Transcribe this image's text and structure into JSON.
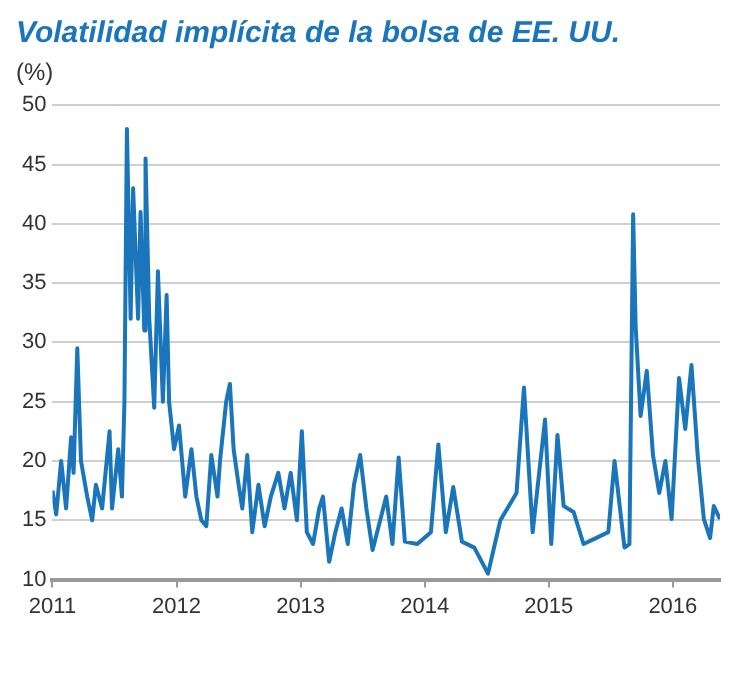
{
  "chart_data": {
    "type": "line",
    "title": "Volatilidad implícita de la bolsa de EE. UU.",
    "ylabel": "(%)",
    "x": [
      2011.0,
      2011.03,
      2011.07,
      2011.11,
      2011.15,
      2011.17,
      2011.2,
      2011.23,
      2011.28,
      2011.32,
      2011.35,
      2011.4,
      2011.46,
      2011.48,
      2011.53,
      2011.56,
      2011.58,
      2011.6,
      2011.63,
      2011.65,
      2011.69,
      2011.71,
      2011.74,
      2011.75,
      2011.78,
      2011.82,
      2011.85,
      2011.89,
      2011.92,
      2011.94,
      2011.98,
      2012.02,
      2012.07,
      2012.12,
      2012.16,
      2012.2,
      2012.24,
      2012.28,
      2012.33,
      2012.35,
      2012.4,
      2012.43,
      2012.46,
      2012.5,
      2012.53,
      2012.57,
      2012.61,
      2012.66,
      2012.71,
      2012.76,
      2012.82,
      2012.87,
      2012.92,
      2012.97,
      2013.01,
      2013.05,
      2013.1,
      2013.15,
      2013.18,
      2013.23,
      2013.28,
      2013.33,
      2013.38,
      2013.43,
      2013.48,
      2013.53,
      2013.58,
      2013.69,
      2013.74,
      2013.79,
      2013.84,
      2013.94,
      2014.05,
      2014.11,
      2014.17,
      2014.23,
      2014.3,
      2014.4,
      2014.51,
      2014.61,
      2014.74,
      2014.8,
      2014.87,
      2014.97,
      2015.02,
      2015.07,
      2015.12,
      2015.2,
      2015.28,
      2015.38,
      2015.48,
      2015.53,
      2015.61,
      2015.65,
      2015.68,
      2015.7,
      2015.74,
      2015.79,
      2015.84,
      2015.89,
      2015.94,
      2015.99,
      2016.05,
      2016.1,
      2016.15,
      2016.2,
      2016.25,
      2016.3,
      2016.33,
      2016.38
    ],
    "series": [
      {
        "color": "#1a75bb",
        "values": [
          17.5,
          15.5,
          20,
          16,
          22,
          19,
          29.5,
          20,
          17,
          15,
          18,
          16,
          22.5,
          16,
          21,
          17,
          25,
          48,
          32,
          43,
          32,
          41,
          31,
          45.5,
          32,
          24.5,
          36,
          25,
          34,
          25,
          21,
          23,
          17,
          21,
          17,
          15,
          14.5,
          20.5,
          17,
          20,
          25,
          26.5,
          21,
          18,
          16,
          20.5,
          14,
          18,
          14.5,
          17,
          19,
          16,
          19,
          15,
          22.5,
          14,
          13,
          16,
          17,
          11.5,
          14,
          16,
          13,
          18,
          20.5,
          16,
          12.5,
          17,
          13,
          20.3,
          13.2,
          13,
          14,
          21.4,
          14,
          17.8,
          13.2,
          12.7,
          10.5,
          15,
          17.3,
          26.2,
          14,
          23.5,
          13,
          22.2,
          16.2,
          15.7,
          13,
          13.5,
          14,
          20,
          12.7,
          13,
          40.8,
          31.4,
          23.8,
          27.6,
          20.5,
          17.3,
          20,
          15.1,
          27,
          22.7,
          28.1,
          20.5,
          15.1,
          13.5,
          16.2,
          15.1
        ]
      }
    ],
    "xlim": [
      2011,
      2016.38
    ],
    "xticks": [
      2011,
      2012,
      2013,
      2014,
      2015,
      2016
    ],
    "ylim": [
      10,
      50
    ],
    "yticks": [
      10,
      15,
      20,
      25,
      30,
      35,
      40,
      45,
      50
    ],
    "grid": "y",
    "marker": "none",
    "line_style": "solid",
    "legend": false
  }
}
